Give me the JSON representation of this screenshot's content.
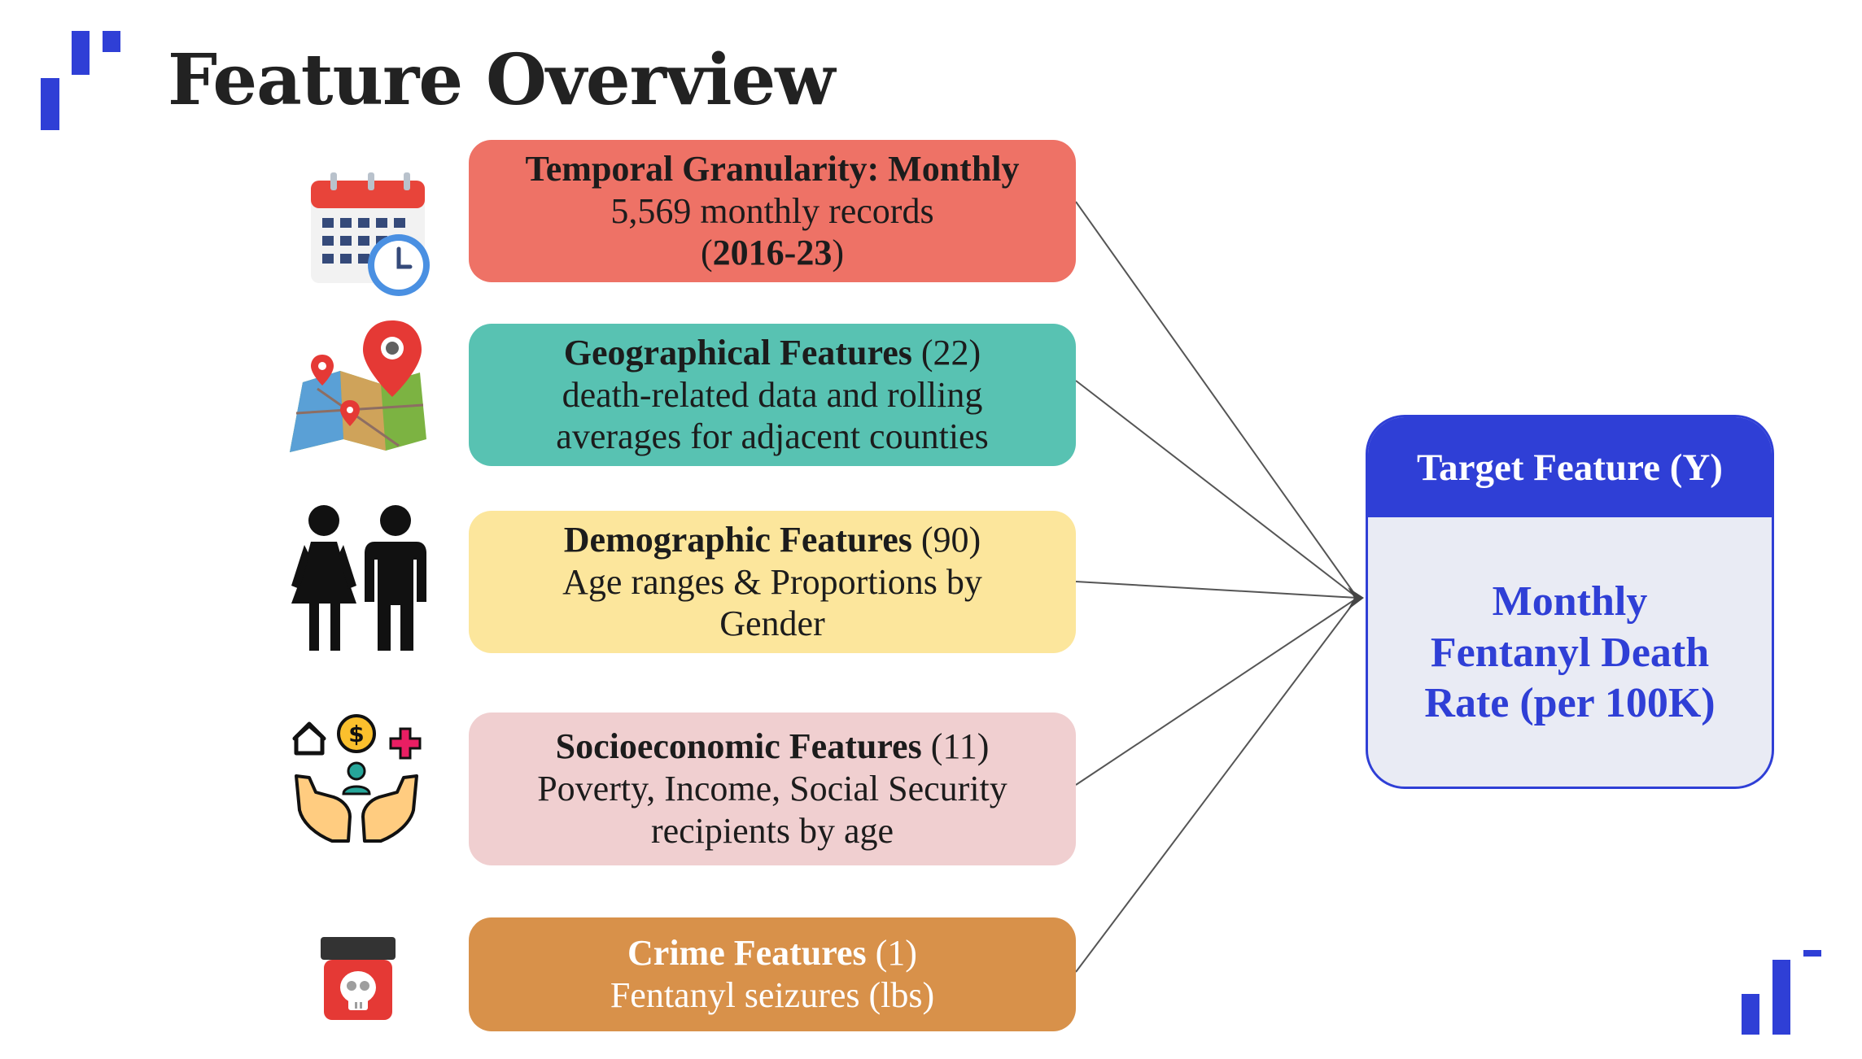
{
  "title": "Feature Overview",
  "features": [
    {
      "id": "temporal",
      "color": "#ee7266",
      "text_color": "#1c1c1c",
      "line1_bold": "Temporal Granularity: Monthly",
      "line1_normal": "",
      "line2": "5,569 monthly records",
      "line3_open": "(",
      "line3_bold": "2016-23",
      "line3_close": ")"
    },
    {
      "id": "geographical",
      "color": "#58c2b2",
      "text_color": "#1c1c1c",
      "line1_bold": "Geographical Features",
      "line1_normal": " (22)",
      "line2": "death-related data and rolling",
      "line3": "averages for adjacent counties"
    },
    {
      "id": "demographic",
      "color": "#fce69c",
      "text_color": "#1c1c1c",
      "line1_bold": "Demographic Features",
      "line1_normal": " (90)",
      "line2": "Age ranges & Proportions by",
      "line3": "Gender"
    },
    {
      "id": "socioeconomic",
      "color": "#f0cfd0",
      "text_color": "#1c1c1c",
      "line1_bold": "Socioeconomic Features",
      "line1_normal": " (11)",
      "line2": "Poverty, Income, Social Security",
      "line3": "recipients by age"
    },
    {
      "id": "crime",
      "color": "#d8914a",
      "text_color": "#ffffff",
      "line1_bold": "Crime Features",
      "line1_normal": " (1)",
      "line2": "Fentanyl seizures (lbs)"
    }
  ],
  "target": {
    "header": "Target Feature (Y)",
    "line1": "Monthly",
    "line2": "Fentanyl Death",
    "line3": "Rate (per 100K)",
    "accent": "#2f3fd6"
  },
  "icons": [
    "calendar-clock-icon",
    "map-pin-icon",
    "woman-man-icon",
    "hands-money-care-icon",
    "poison-jar-icon"
  ]
}
